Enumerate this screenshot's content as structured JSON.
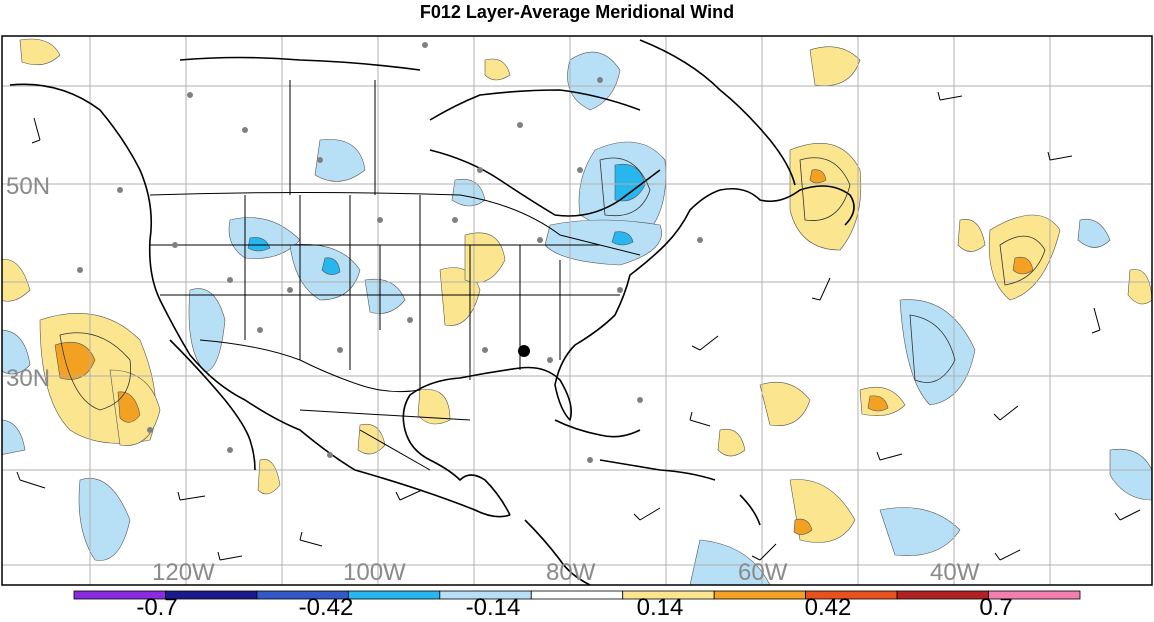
{
  "title": "F012 Layer-Average Meridional Wind",
  "map": {
    "lat_labels": [
      "50N",
      "30N"
    ],
    "lon_labels": [
      "120W",
      "100W",
      "80W",
      "60W",
      "40W"
    ],
    "gridlines": true,
    "land_fill": "#ffffff",
    "positive_fill_light": "#fbe58f",
    "positive_fill_mid": "#f2a122",
    "negative_fill_light": "#b7e0f7",
    "negative_fill_mid": "#28b6ee",
    "station_marker_color": "#808080",
    "highlight_marker_color": "#000000"
  },
  "colorbar": {
    "colors": [
      "#8a2be2",
      "#1a1a8c",
      "#3458c8",
      "#28b6ee",
      "#b7e0f7",
      "#ffffff",
      "#fbe58f",
      "#f2a122",
      "#e8501e",
      "#b22222",
      "#f27fb0"
    ],
    "tick_labels": [
      "-0.7",
      "-0.42",
      "-0.14",
      "0.14",
      "0.42",
      "0.7"
    ]
  }
}
